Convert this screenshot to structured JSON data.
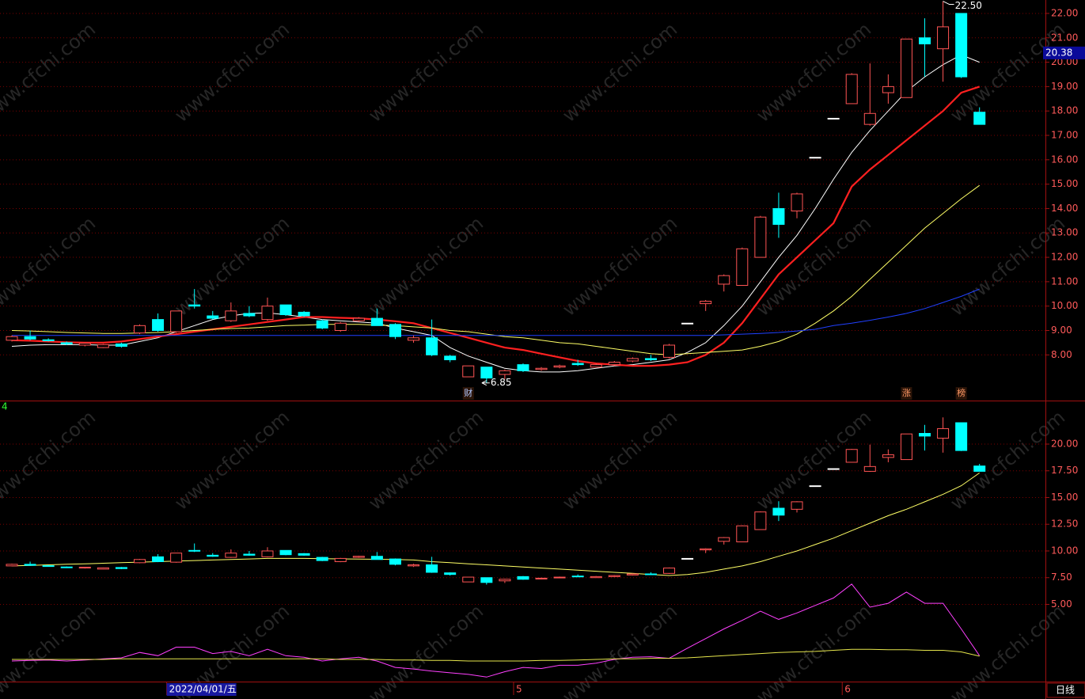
{
  "chart_data": {
    "type": "candlestick",
    "categories": [
      null,
      null,
      null,
      null,
      null,
      null,
      null,
      null,
      null,
      "2022/04/01/五",
      null,
      null,
      null,
      null,
      null,
      null,
      null,
      null,
      null,
      null,
      null,
      null,
      null,
      null,
      null,
      null,
      null,
      null,
      "5",
      null,
      null,
      null,
      null,
      null,
      null,
      null,
      null,
      null,
      null,
      null,
      null,
      null,
      null,
      null,
      null,
      null,
      "6",
      null,
      null,
      null,
      null,
      null,
      null,
      null
    ],
    "open": [
      8.6,
      8.75,
      8.62,
      8.5,
      8.4,
      8.3,
      8.45,
      8.9,
      9.45,
      8.95,
      10.05,
      9.6,
      9.4,
      9.7,
      9.45,
      10.05,
      9.75,
      9.4,
      9.0,
      9.4,
      9.5,
      9.25,
      8.6,
      8.7,
      7.95,
      7.1,
      7.5,
      7.2,
      7.6,
      7.4,
      7.5,
      7.65,
      7.5,
      7.6,
      7.75,
      7.85,
      7.9,
      9.3,
      10.1,
      10.9,
      10.85,
      12.0,
      14.0,
      13.9,
      16.1,
      17.7,
      18.3,
      17.45,
      18.75,
      18.55,
      21.0,
      20.55,
      22.0,
      17.95
    ],
    "high": [
      8.8,
      9.0,
      8.68,
      8.55,
      8.5,
      8.45,
      8.5,
      9.25,
      9.7,
      9.8,
      10.7,
      9.8,
      10.15,
      10.0,
      10.35,
      10.05,
      9.8,
      9.45,
      9.35,
      9.55,
      9.9,
      9.3,
      8.8,
      9.45,
      8.0,
      7.55,
      7.5,
      7.4,
      7.65,
      7.5,
      7.6,
      7.8,
      7.65,
      7.75,
      7.9,
      8.0,
      8.45,
      9.3,
      10.25,
      11.3,
      12.4,
      13.7,
      14.65,
      14.65,
      16.1,
      17.7,
      19.55,
      19.95,
      19.5,
      20.95,
      21.8,
      22.5,
      22.0,
      18.15
    ],
    "low": [
      8.55,
      8.6,
      8.55,
      8.4,
      8.35,
      8.28,
      8.3,
      8.85,
      8.95,
      8.9,
      9.9,
      9.45,
      9.35,
      9.55,
      9.4,
      9.6,
      9.55,
      9.05,
      8.95,
      9.35,
      9.2,
      8.65,
      8.5,
      7.95,
      7.7,
      7.1,
      6.85,
      7.0,
      7.3,
      7.35,
      7.45,
      7.55,
      7.5,
      7.55,
      7.7,
      7.75,
      7.85,
      9.3,
      9.8,
      10.6,
      10.85,
      12.0,
      12.8,
      13.6,
      16.1,
      17.7,
      18.3,
      17.4,
      18.3,
      18.55,
      19.4,
      19.2,
      19.35,
      17.45
    ],
    "close": [
      8.75,
      8.65,
      8.58,
      8.45,
      8.48,
      8.42,
      8.35,
      9.2,
      9.0,
      9.8,
      10.0,
      9.5,
      9.8,
      9.6,
      10.0,
      9.65,
      9.6,
      9.1,
      9.3,
      9.5,
      9.2,
      8.75,
      8.7,
      8.0,
      7.8,
      7.55,
      7.05,
      7.35,
      7.35,
      7.45,
      7.55,
      7.6,
      7.6,
      7.7,
      7.85,
      7.8,
      8.4,
      9.3,
      10.2,
      11.25,
      12.35,
      13.65,
      13.35,
      14.6,
      16.1,
      17.7,
      19.5,
      17.9,
      19.0,
      20.95,
      20.75,
      21.45,
      19.4,
      17.45
    ],
    "up_color": "#ff5454",
    "down_color": "#00ffff",
    "flat_color": "#ffffff",
    "ylim": [
      6.16,
      22.55
    ],
    "yticks": [
      {
        "value": 8,
        "label": "8.00"
      },
      {
        "value": 9,
        "label": "9.00"
      },
      {
        "value": 10,
        "label": "10.00"
      },
      {
        "value": 11,
        "label": "11.00"
      },
      {
        "value": 12,
        "label": "12.00"
      },
      {
        "value": 13,
        "label": "13.00"
      },
      {
        "value": 14,
        "label": "14.00"
      },
      {
        "value": 15,
        "label": "15.00"
      },
      {
        "value": 16,
        "label": "16.00"
      },
      {
        "value": 17,
        "label": "17.00"
      },
      {
        "value": 18,
        "label": "18.00"
      },
      {
        "value": 19,
        "label": "19.00"
      },
      {
        "value": 20,
        "label": "20.00"
      },
      {
        "value": 21,
        "label": "21.00"
      },
      {
        "value": 22,
        "label": "22.00"
      }
    ],
    "grid": true,
    "lines": [
      {
        "color": "#ffffff",
        "width": 1,
        "values": [
          8.35,
          8.4,
          8.42,
          8.42,
          8.42,
          8.4,
          8.4,
          8.55,
          8.7,
          8.95,
          9.2,
          9.45,
          9.6,
          9.7,
          9.72,
          9.65,
          9.55,
          9.45,
          9.4,
          9.35,
          9.3,
          9.1,
          8.95,
          8.8,
          8.3,
          7.95,
          7.7,
          7.45,
          7.35,
          7.3,
          7.3,
          7.35,
          7.45,
          7.55,
          7.6,
          7.7,
          7.8,
          8.1,
          8.5,
          9.2,
          10.0,
          11.0,
          12.0,
          12.9,
          14.0,
          15.2,
          16.3,
          17.2,
          18.0,
          18.8,
          19.4,
          19.9,
          20.3,
          20.0
        ]
      },
      {
        "color": "#ff2020",
        "width": 2.2,
        "values": [
          8.6,
          8.58,
          8.55,
          8.52,
          8.5,
          8.5,
          8.55,
          8.65,
          8.75,
          8.85,
          8.95,
          9.05,
          9.15,
          9.25,
          9.35,
          9.45,
          9.55,
          9.55,
          9.52,
          9.5,
          9.45,
          9.38,
          9.3,
          9.1,
          8.9,
          8.7,
          8.5,
          8.3,
          8.2,
          8.05,
          7.9,
          7.75,
          7.65,
          7.6,
          7.55,
          7.55,
          7.6,
          7.7,
          8.0,
          8.5,
          9.3,
          10.3,
          11.3,
          12.0,
          12.7,
          13.4,
          14.9,
          15.6,
          16.2,
          16.8,
          17.4,
          18.0,
          18.75,
          19.0
        ]
      },
      {
        "color": "#ffff66",
        "width": 1,
        "values": [
          9.0,
          8.98,
          8.95,
          8.92,
          8.9,
          8.88,
          8.88,
          8.9,
          8.92,
          8.95,
          9.0,
          9.05,
          9.08,
          9.1,
          9.15,
          9.2,
          9.22,
          9.25,
          9.25,
          9.25,
          9.22,
          9.2,
          9.15,
          9.1,
          9.0,
          8.95,
          8.85,
          8.75,
          8.7,
          8.6,
          8.5,
          8.45,
          8.35,
          8.25,
          8.15,
          8.05,
          8.0,
          8.05,
          8.1,
          8.15,
          8.2,
          8.35,
          8.55,
          8.85,
          9.3,
          9.8,
          10.4,
          11.1,
          11.8,
          12.5,
          13.2,
          13.8,
          14.4,
          14.95
        ]
      },
      {
        "color": "#2040ff",
        "width": 1,
        "values": [
          8.8,
          8.8,
          8.8,
          8.8,
          8.8,
          8.8,
          8.8,
          8.8,
          8.8,
          8.8,
          8.8,
          8.8,
          8.8,
          8.8,
          8.8,
          8.8,
          8.8,
          8.8,
          8.8,
          8.8,
          8.8,
          8.8,
          8.8,
          8.8,
          8.8,
          8.8,
          8.8,
          8.8,
          8.8,
          8.8,
          8.8,
          8.8,
          8.8,
          8.8,
          8.8,
          8.8,
          8.8,
          8.8,
          8.8,
          8.82,
          8.85,
          8.88,
          8.92,
          8.98,
          9.05,
          9.2,
          9.3,
          9.42,
          9.55,
          9.7,
          9.9,
          10.15,
          10.4,
          10.7
        ]
      }
    ],
    "current_price": {
      "value": 20.38,
      "label": "20.38"
    },
    "high_label": {
      "value": 22.5,
      "label": "22.50"
    },
    "low_label": {
      "value": 6.85,
      "label": "6.85"
    },
    "event_labels": [
      null,
      null,
      null,
      null,
      null,
      null,
      null,
      null,
      null,
      null,
      null,
      null,
      null,
      null,
      null,
      null,
      null,
      null,
      null,
      null,
      null,
      null,
      null,
      null,
      null,
      "财",
      null,
      null,
      null,
      null,
      null,
      null,
      null,
      null,
      null,
      null,
      null,
      null,
      null,
      null,
      null,
      null,
      null,
      null,
      null,
      null,
      null,
      null,
      null,
      "涨",
      null,
      null,
      "榜",
      null
    ],
    "lower_panel": {
      "label": "4",
      "ylim": [
        -2.3,
        24
      ],
      "yticks": [
        {
          "value": 5,
          "label": "5.00"
        },
        {
          "value": 7.5,
          "label": "7.50"
        },
        {
          "value": 10,
          "label": "10.00"
        },
        {
          "value": 12.5,
          "label": "12.50"
        },
        {
          "value": 15,
          "label": "15.00"
        },
        {
          "value": 17.5,
          "label": "17.50"
        },
        {
          "value": 20,
          "label": "20.00"
        }
      ],
      "lines": [
        {
          "color": "#ffff66",
          "width": 1,
          "values": [
            8.6,
            8.65,
            8.7,
            8.75,
            8.8,
            8.85,
            8.9,
            8.95,
            9.0,
            9.05,
            9.1,
            9.15,
            9.2,
            9.25,
            9.3,
            9.3,
            9.3,
            9.28,
            9.26,
            9.24,
            9.22,
            9.2,
            9.15,
            9.0,
            8.9,
            8.8,
            8.7,
            8.6,
            8.5,
            8.4,
            8.3,
            8.2,
            8.1,
            8.0,
            7.9,
            7.8,
            7.7,
            7.8,
            8.0,
            8.3,
            8.6,
            9.0,
            9.5,
            10.0,
            10.6,
            11.2,
            11.9,
            12.6,
            13.3,
            13.9,
            14.6,
            15.3,
            16.1,
            17.3
          ]
        },
        {
          "color": "#ff40ff",
          "width": 1,
          "values": [
            -0.3,
            -0.25,
            -0.2,
            -0.3,
            -0.2,
            -0.1,
            0.0,
            0.5,
            0.2,
            1.0,
            1.0,
            0.4,
            0.6,
            0.2,
            0.8,
            0.2,
            0.05,
            -0.3,
            -0.1,
            0.05,
            -0.3,
            -0.9,
            -1.05,
            -1.25,
            -1.4,
            -1.55,
            -1.8,
            -1.3,
            -0.9,
            -1.0,
            -0.7,
            -0.7,
            -0.5,
            -0.15,
            0.05,
            0.1,
            -0.05,
            0.9,
            1.8,
            2.7,
            3.5,
            4.37,
            3.6,
            4.2,
            4.9,
            5.6,
            6.9,
            4.74,
            5.1,
            6.15,
            5.1,
            5.1,
            2.7,
            0.2
          ]
        },
        {
          "color": "#e6e64c",
          "width": 1,
          "values": [
            -0.15,
            -0.15,
            -0.15,
            -0.15,
            -0.15,
            -0.15,
            -0.1,
            -0.1,
            -0.1,
            -0.1,
            -0.1,
            -0.1,
            -0.1,
            -0.1,
            -0.1,
            -0.1,
            -0.1,
            -0.1,
            -0.15,
            -0.15,
            -0.15,
            -0.2,
            -0.2,
            -0.25,
            -0.25,
            -0.3,
            -0.3,
            -0.3,
            -0.3,
            -0.25,
            -0.25,
            -0.2,
            -0.15,
            -0.1,
            -0.1,
            -0.05,
            -0.05,
            0.0,
            0.1,
            0.2,
            0.3,
            0.4,
            0.5,
            0.55,
            0.6,
            0.7,
            0.8,
            0.8,
            0.75,
            0.75,
            0.7,
            0.7,
            0.55,
            0.15
          ]
        }
      ]
    },
    "period_label": "日线",
    "watermark": "www.cfchi.com"
  }
}
